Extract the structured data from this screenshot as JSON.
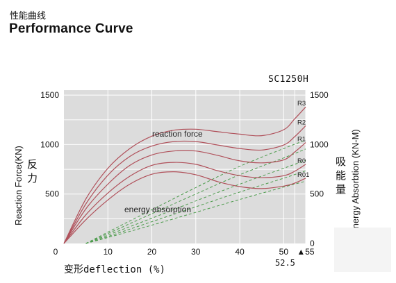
{
  "header": {
    "title_cn": "性能曲线",
    "title_en": "Performance Curve",
    "model": "SC1250H"
  },
  "chart_data": {
    "type": "line",
    "x_axis": {
      "label": "变形deflection (%)",
      "ticks": [
        "10",
        "20",
        "30",
        "40",
        "50",
        "▲55"
      ],
      "extra_tick_label": "52.5",
      "xlim": [
        0,
        55
      ]
    },
    "y_left": {
      "label": "Reaction Force(KN)",
      "label_cn": "反力",
      "ticks": [
        "0",
        "500",
        "1000",
        "1500"
      ],
      "ylim": [
        0,
        1550
      ]
    },
    "y_right": {
      "label": "Energy Absorbtion (KN-M)",
      "label_cn": "吸能量",
      "ticks": [
        "0",
        "500",
        "1000",
        "1500"
      ]
    },
    "annotations": {
      "reaction": "reaction force",
      "energy": "energy absorption"
    },
    "series": [
      {
        "name": "R3",
        "reaction": [
          [
            0,
            0
          ],
          [
            5,
            450
          ],
          [
            10,
            760
          ],
          [
            15,
            960
          ],
          [
            20,
            1085
          ],
          [
            25,
            1145
          ],
          [
            30,
            1155
          ],
          [
            35,
            1130
          ],
          [
            40,
            1105
          ],
          [
            45,
            1090
          ],
          [
            50,
            1150
          ],
          [
            52.5,
            1260
          ],
          [
            55,
            1380
          ]
        ],
        "energy": [
          [
            5,
            0
          ],
          [
            10,
            115
          ],
          [
            20,
            340
          ],
          [
            30,
            565
          ],
          [
            40,
            780
          ],
          [
            50,
            960
          ],
          [
            55,
            1045
          ]
        ]
      },
      {
        "name": "R2",
        "reaction": [
          [
            0,
            0
          ],
          [
            5,
            400
          ],
          [
            10,
            690
          ],
          [
            15,
            880
          ],
          [
            20,
            985
          ],
          [
            25,
            1030
          ],
          [
            30,
            1030
          ],
          [
            35,
            995
          ],
          [
            40,
            960
          ],
          [
            45,
            945
          ],
          [
            50,
            995
          ],
          [
            52.5,
            1080
          ],
          [
            55,
            1190
          ]
        ],
        "energy": [
          [
            5,
            0
          ],
          [
            10,
            100
          ],
          [
            20,
            300
          ],
          [
            30,
            500
          ],
          [
            40,
            695
          ],
          [
            50,
            865
          ],
          [
            55,
            955
          ]
        ]
      },
      {
        "name": "R1",
        "reaction": [
          [
            0,
            0
          ],
          [
            5,
            350
          ],
          [
            10,
            600
          ],
          [
            15,
            790
          ],
          [
            20,
            895
          ],
          [
            25,
            935
          ],
          [
            30,
            935
          ],
          [
            35,
            890
          ],
          [
            40,
            835
          ],
          [
            45,
            815
          ],
          [
            50,
            845
          ],
          [
            52.5,
            925
          ],
          [
            55,
            1020
          ]
        ],
        "energy": [
          [
            5,
            0
          ],
          [
            10,
            85
          ],
          [
            20,
            255
          ],
          [
            30,
            430
          ],
          [
            40,
            600
          ],
          [
            50,
            760
          ],
          [
            55,
            840
          ]
        ]
      },
      {
        "name": "R0",
        "reaction": [
          [
            0,
            0
          ],
          [
            5,
            290
          ],
          [
            10,
            510
          ],
          [
            15,
            680
          ],
          [
            20,
            790
          ],
          [
            25,
            820
          ],
          [
            30,
            800
          ],
          [
            35,
            735
          ],
          [
            40,
            685
          ],
          [
            45,
            665
          ],
          [
            50,
            685
          ],
          [
            52.5,
            730
          ],
          [
            55,
            800
          ]
        ],
        "energy": [
          [
            5,
            0
          ],
          [
            10,
            70
          ],
          [
            20,
            220
          ],
          [
            30,
            370
          ],
          [
            40,
            520
          ],
          [
            50,
            660
          ],
          [
            55,
            735
          ]
        ]
      },
      {
        "name": "R01",
        "reaction": [
          [
            0,
            0
          ],
          [
            5,
            240
          ],
          [
            10,
            440
          ],
          [
            15,
            600
          ],
          [
            20,
            700
          ],
          [
            25,
            725
          ],
          [
            30,
            695
          ],
          [
            35,
            625
          ],
          [
            40,
            575
          ],
          [
            45,
            555
          ],
          [
            50,
            580
          ],
          [
            52.5,
            610
          ],
          [
            55,
            660
          ]
        ],
        "energy": [
          [
            5,
            0
          ],
          [
            10,
            60
          ],
          [
            20,
            185
          ],
          [
            30,
            315
          ],
          [
            40,
            445
          ],
          [
            50,
            570
          ],
          [
            55,
            630
          ]
        ]
      }
    ],
    "colors": {
      "reaction": "#b0505a",
      "energy": "#4a9a4a",
      "plot_bg": "#dcdcdc",
      "grid": "#ffffff"
    },
    "grid": true
  }
}
